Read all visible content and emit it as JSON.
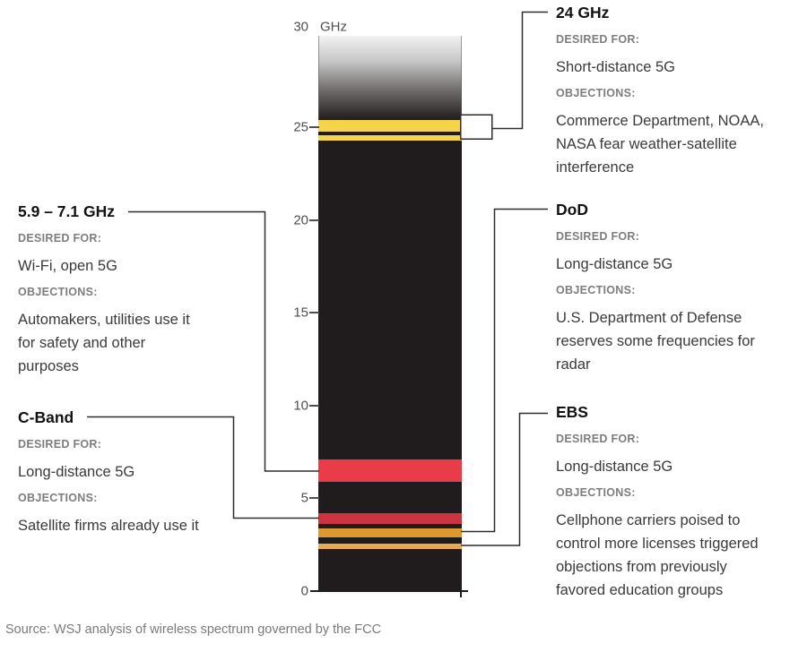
{
  "chart_data": {
    "type": "spectrum-bar",
    "title": "",
    "unit": "GHz",
    "axis_range": [
      0,
      30
    ],
    "tick_values": [
      0,
      5,
      10,
      15,
      20,
      25,
      30
    ],
    "bar_color": "#201b1c",
    "top_fade_above_ghz": 25.4,
    "bands": [
      {
        "name": "24 GHz (upper segment)",
        "ghz_low": 24.75,
        "ghz_high": 25.4,
        "color": "#f5d34b",
        "callout": "24 GHz"
      },
      {
        "name": "24 GHz (lower segment)",
        "ghz_low": 24.27,
        "ghz_high": 24.56,
        "color": "#f5d34b",
        "callout": "24 GHz"
      },
      {
        "name": "5.9 – 7.1 GHz",
        "ghz_low": 5.9,
        "ghz_high": 7.1,
        "color": "#e93c48",
        "callout": "5.9 – 7.1 GHz"
      },
      {
        "name": "C-Band",
        "ghz_low": 3.62,
        "ghz_high": 4.2,
        "color": "#cd3440",
        "callout": "C-Band"
      },
      {
        "name": "DoD",
        "ghz_low": 2.9,
        "ghz_high": 3.38,
        "color": "#dc992f",
        "callout": "DoD"
      },
      {
        "name": "EBS",
        "ghz_low": 2.27,
        "ghz_high": 2.56,
        "color": "#e5ab52",
        "callout": "EBS"
      }
    ]
  },
  "labels": {
    "desired_for": "DESIRED FOR:",
    "objections": "OBJECTIONS:"
  },
  "callouts": {
    "ghz24": {
      "title": "24 GHz",
      "desired": "Short-distance 5G",
      "objections": "Commerce Department, NOAA,\nNASA fear weather-satellite\ninterference"
    },
    "band59": {
      "title": "5.9 – 7.1 GHz",
      "desired": "Wi-Fi, open 5G",
      "objections": "Automakers, utilities use it\nfor safety and other\npurposes"
    },
    "dod": {
      "title": "DoD",
      "desired": "Long-distance 5G",
      "objections": "U.S. Department of Defense\nreserves some frequencies for\nradar"
    },
    "cband": {
      "title": "C-Band",
      "desired": "Long-distance 5G",
      "objections": "Satellite firms already use it"
    },
    "ebs": {
      "title": "EBS",
      "desired": "Long-distance 5G",
      "objections": "Cellphone carriers poised to\ncontrol more licenses triggered\nobjections from previously\nfavored education groups"
    }
  },
  "source": "Source: WSJ analysis of wireless spectrum governed by the FCC",
  "colors": {
    "bar": "#201b1c",
    "yellow_band": "#f5d34b",
    "red_band": "#e93c48",
    "dark_red_band": "#cd3440",
    "orange_band": "#dc992f",
    "light_orange_band": "#e5ab52",
    "connector": "#2d2d2d"
  }
}
